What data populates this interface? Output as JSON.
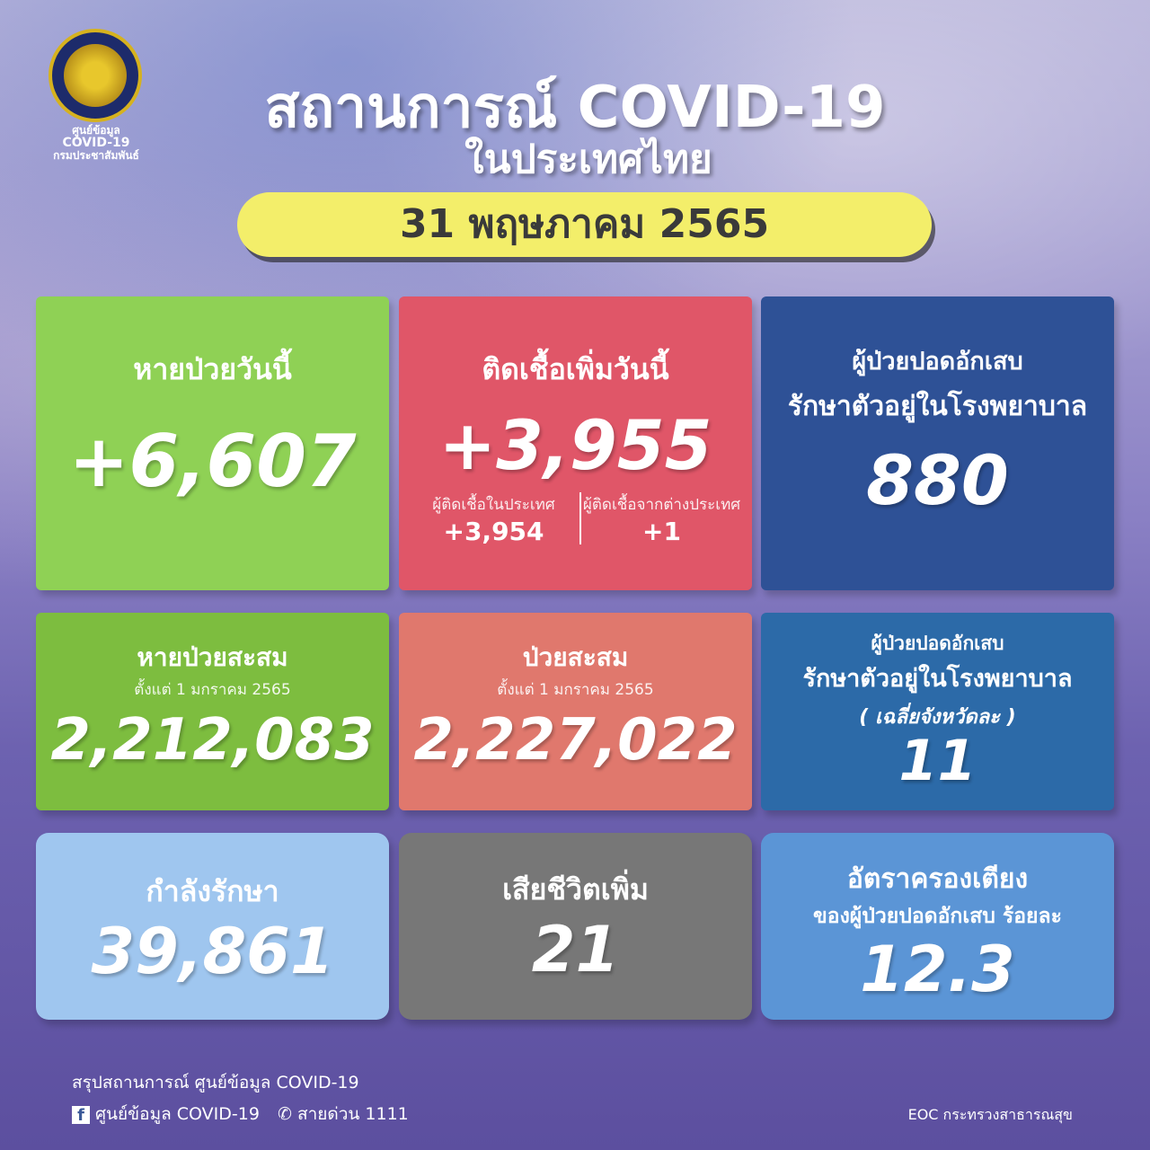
{
  "logo": {
    "line1": "ศูนย์ข้อมูล",
    "line2": "COVID-19",
    "line3": "กรมประชาสัมพันธ์"
  },
  "header": {
    "title": "สถานการณ์ COVID-19",
    "subtitle": "ในประเทศไทย",
    "date": "31  พฤษภาคม 2565"
  },
  "cards": {
    "recovered_today": {
      "label": "หายป่วยวันนี้",
      "value": "+6,607",
      "color": "#8fd155"
    },
    "new_cases": {
      "label": "ติดเชื้อเพิ่มวันนี้",
      "value": "+3,955",
      "color": "#e05668",
      "domestic_label": "ผู้ติดเชื้อในประเทศ",
      "domestic_value": "+3,954",
      "imported_label": "ผู้ติดเชื้อจากต่างประเทศ",
      "imported_value": "+1"
    },
    "pneumonia": {
      "line1": "ผู้ป่วยปอดอักเสบ",
      "line2": "รักษาตัวอยู่ในโรงพยาบาล",
      "value": "880",
      "color": "#2e5196"
    },
    "recovered_total": {
      "label": "หายป่วยสะสม",
      "since": "ตั้งแต่ 1 มกราคม 2565",
      "value": "2,212,083",
      "color": "#7dbd3f"
    },
    "cases_total": {
      "label": "ป่วยสะสม",
      "since": "ตั้งแต่ 1 มกราคม 2565",
      "value": "2,227,022",
      "color": "#e0786d"
    },
    "pneumonia_avg": {
      "line1": "ผู้ป่วยปอดอักเสบ",
      "line2": "รักษาตัวอยู่ในโรงพยาบาล",
      "line3": "( เฉลี่ยจังหวัดละ )",
      "value": "11",
      "color": "#2c6aa8"
    },
    "treating": {
      "label": "กำลังรักษา",
      "value": "39,861",
      "color": "#9fc6ef"
    },
    "deaths": {
      "label": "เสียชีวิตเพิ่ม",
      "value": "21",
      "color": "#777777"
    },
    "bed_rate": {
      "line1": "อัตราครองเตียง",
      "line2": "ของผู้ป่วยปอดอักเสบ ร้อยละ",
      "value": "12.3",
      "color": "#5b95d6"
    }
  },
  "footer": {
    "summary": "สรุปสถานการณ์ ศูนย์ข้อมูล COVID-19",
    "facebook": "ศูนย์ข้อมูล COVID-19",
    "hotline": "สายด่วน 1111",
    "source": "EOC กระทรวงสาธารณสุข"
  }
}
